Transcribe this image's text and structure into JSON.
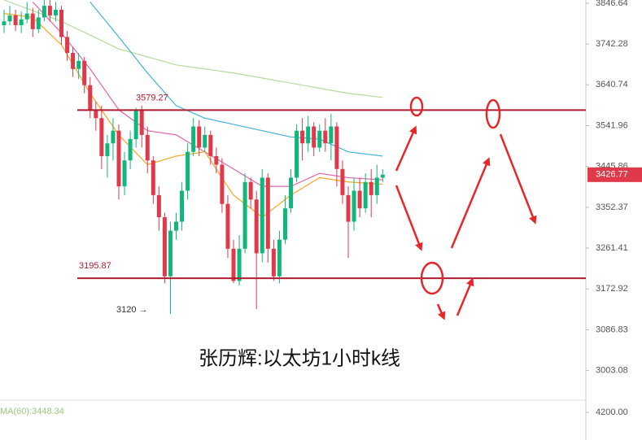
{
  "chart_data": {
    "type": "candlestick",
    "title": "张历辉:以太坊1小时k线",
    "log_scale": true,
    "ylim": [
      2947,
      3855
    ],
    "yticks": [
      3846.64,
      3742.28,
      3640.74,
      3541.96,
      3445.86,
      3352.37,
      3261.41,
      3172.92,
      3086.83,
      3003.08
    ],
    "up_color": "#0fb87a",
    "down_color": "#e0394a",
    "candles": {
      "open": [
        3790,
        3800,
        3815,
        3790,
        3805,
        3820,
        3780,
        3810,
        3840,
        3815,
        3830,
        3760,
        3720,
        3680,
        3700,
        3640,
        3580,
        3560,
        3470,
        3500,
        3530,
        3400,
        3460,
        3510,
        3580,
        3520,
        3460,
        3380,
        3330,
        3200,
        3300,
        3320,
        3390,
        3480,
        3540,
        3490,
        3520,
        3470,
        3450,
        3360,
        3260,
        3190,
        3260,
        3410,
        3370,
        3250,
        3420,
        3260,
        3200,
        3280,
        3350,
        3420,
        3530,
        3500,
        3540,
        3490,
        3530,
        3500,
        3540,
        3440,
        3380,
        3320,
        3390,
        3350,
        3410,
        3380,
        3420
      ],
      "high": [
        3830,
        3840,
        3830,
        3825,
        3850,
        3835,
        3830,
        3855,
        3855,
        3850,
        3840,
        3775,
        3735,
        3720,
        3710,
        3660,
        3600,
        3590,
        3520,
        3560,
        3545,
        3480,
        3530,
        3585,
        3590,
        3540,
        3470,
        3400,
        3340,
        3320,
        3340,
        3410,
        3500,
        3560,
        3555,
        3540,
        3530,
        3490,
        3465,
        3380,
        3280,
        3290,
        3430,
        3420,
        3390,
        3440,
        3430,
        3280,
        3300,
        3380,
        3440,
        3545,
        3560,
        3565,
        3550,
        3545,
        3560,
        3570,
        3550,
        3460,
        3400,
        3420,
        3420,
        3430,
        3440,
        3450,
        3440
      ],
      "low": [
        3770,
        3790,
        3775,
        3770,
        3795,
        3760,
        3770,
        3800,
        3800,
        3800,
        3740,
        3700,
        3660,
        3655,
        3620,
        3560,
        3530,
        3440,
        3420,
        3460,
        3370,
        3380,
        3440,
        3490,
        3490,
        3430,
        3360,
        3300,
        3185,
        3120,
        3280,
        3300,
        3370,
        3470,
        3470,
        3480,
        3450,
        3430,
        3340,
        3240,
        3185,
        3180,
        3250,
        3350,
        3130,
        3230,
        3230,
        3190,
        3185,
        3270,
        3340,
        3410,
        3460,
        3480,
        3470,
        3480,
        3480,
        3460,
        3400,
        3360,
        3240,
        3300,
        3330,
        3340,
        3330,
        3360,
        3410
      ],
      "close": [
        3800,
        3815,
        3790,
        3805,
        3820,
        3780,
        3810,
        3840,
        3815,
        3830,
        3760,
        3720,
        3680,
        3700,
        3640,
        3580,
        3560,
        3470,
        3500,
        3530,
        3400,
        3460,
        3510,
        3580,
        3520,
        3460,
        3380,
        3330,
        3200,
        3300,
        3320,
        3390,
        3480,
        3540,
        3490,
        3520,
        3470,
        3450,
        3360,
        3260,
        3190,
        3260,
        3410,
        3370,
        3250,
        3420,
        3260,
        3200,
        3280,
        3350,
        3420,
        3530,
        3500,
        3540,
        3490,
        3530,
        3500,
        3540,
        3440,
        3380,
        3320,
        3390,
        3350,
        3410,
        3380,
        3420,
        3427
      ]
    },
    "lines": [
      {
        "color": "#b5dc9c",
        "x": [
          0,
          10,
          20,
          30,
          40,
          50,
          60,
          66
        ],
        "values": [
          3855,
          3800,
          3730,
          3690,
          3670,
          3645,
          3620,
          3610
        ]
      },
      {
        "color": "#3fb2da",
        "x": [
          15,
          20,
          25,
          30,
          35,
          40,
          45,
          50,
          55,
          60,
          66
        ],
        "values": [
          3850,
          3760,
          3670,
          3590,
          3560,
          3545,
          3530,
          3515,
          3510,
          3480,
          3470
        ]
      },
      {
        "color": "#e066b0",
        "x": [
          5,
          10,
          15,
          20,
          25,
          30,
          35,
          40,
          45,
          50,
          55,
          60,
          66
        ],
        "values": [
          3850,
          3770,
          3680,
          3580,
          3530,
          3520,
          3480,
          3440,
          3400,
          3400,
          3430,
          3420,
          3415
        ]
      },
      {
        "color": "#f5a623",
        "x": [
          0,
          5,
          10,
          15,
          20,
          25,
          30,
          35,
          40,
          45,
          50,
          55,
          60,
          66
        ],
        "values": [
          3820,
          3810,
          3740,
          3620,
          3520,
          3450,
          3470,
          3480,
          3380,
          3330,
          3380,
          3420,
          3410,
          3405
        ]
      }
    ],
    "levels": [
      3579.27,
      3195.87
    ],
    "level_color": "#b01c2e",
    "last_price": 3426.77,
    "low_marker": {
      "value": 3120,
      "label": "3120 →"
    },
    "ma_label": "MA(60):3448.34",
    "lower_pane_ticks": [
      {
        "value": 4200,
        "label": "4200.00"
      }
    ]
  }
}
